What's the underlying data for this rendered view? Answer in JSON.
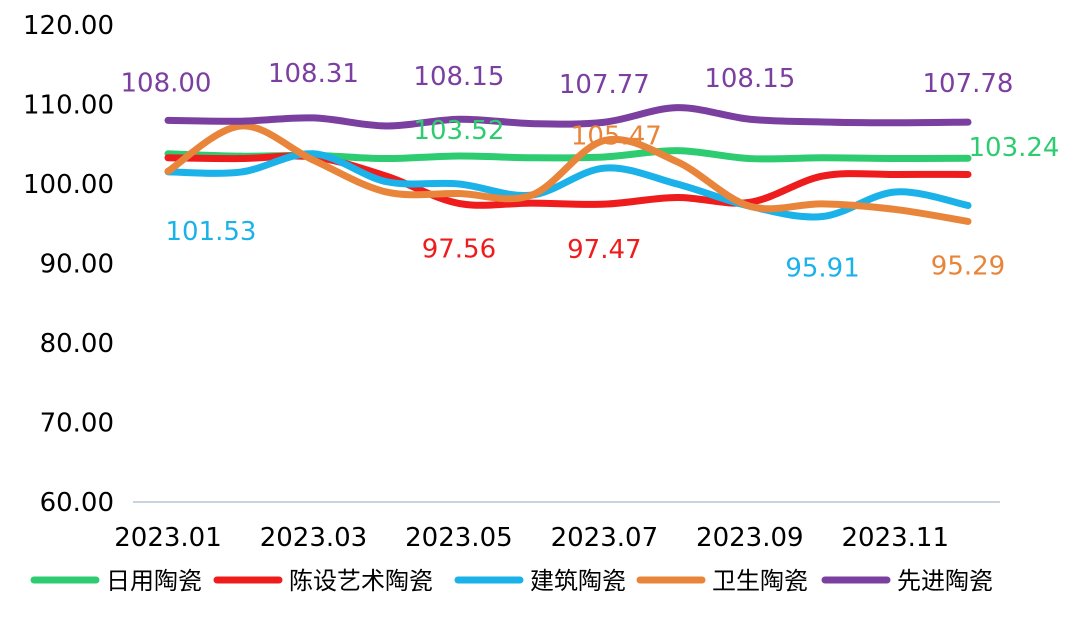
{
  "chart_data": {
    "type": "line",
    "title": "",
    "xlabel": "",
    "ylabel": "",
    "ylim": [
      60,
      120
    ],
    "yticks": [
      "60.00",
      "70.00",
      "80.00",
      "90.00",
      "100.00",
      "110.00",
      "120.00"
    ],
    "x": [
      "2023.01",
      "2023.02",
      "2023.03",
      "2023.04",
      "2023.05",
      "2023.06",
      "2023.07",
      "2023.08",
      "2023.09",
      "2023.10",
      "2023.11",
      "2023.12"
    ],
    "xtick_labels": [
      "2023.01",
      "2023.03",
      "2023.05",
      "2023.07",
      "2023.09",
      "2023.11"
    ],
    "grid": false,
    "legend_position": "bottom",
    "smooth": true,
    "series": [
      {
        "name": "日用陶瓷",
        "color": "#2ecc71",
        "values": [
          103.8,
          103.5,
          103.6,
          103.2,
          103.52,
          103.3,
          103.4,
          104.2,
          103.2,
          103.3,
          103.2,
          103.24
        ],
        "labels": [
          {
            "index": 4,
            "text": "103.52"
          },
          {
            "index": 11,
            "text": "103.24"
          }
        ]
      },
      {
        "name": "陈设艺术陶瓷",
        "color": "#ee1c1c",
        "values": [
          103.3,
          103.2,
          103.4,
          101.0,
          97.56,
          97.6,
          97.47,
          98.3,
          97.7,
          101.0,
          101.2,
          101.2
        ],
        "labels": [
          {
            "index": 4,
            "text": "97.56"
          },
          {
            "index": 6,
            "text": "97.47"
          }
        ]
      },
      {
        "name": "建筑陶瓷",
        "color": "#1ab2e8",
        "values": [
          101.53,
          101.5,
          103.8,
          100.3,
          100.0,
          98.6,
          102.0,
          100.0,
          97.2,
          95.91,
          99.0,
          97.3
        ],
        "labels": [
          {
            "index": 0,
            "text": "101.53"
          },
          {
            "index": 9,
            "text": "95.91"
          }
        ]
      },
      {
        "name": "卫生陶瓷",
        "color": "#e8853a",
        "values": [
          101.6,
          107.3,
          103.0,
          99.0,
          98.8,
          98.6,
          105.47,
          102.8,
          97.2,
          97.5,
          96.8,
          95.29
        ],
        "labels": [
          {
            "index": 6,
            "text": "105.47"
          },
          {
            "index": 11,
            "text": "95.29"
          }
        ]
      },
      {
        "name": "先进陶瓷",
        "color": "#7b3fa0",
        "values": [
          108.0,
          107.9,
          108.31,
          107.3,
          108.15,
          107.6,
          107.77,
          109.6,
          108.15,
          107.8,
          107.7,
          107.78
        ],
        "labels": [
          {
            "index": 0,
            "text": "108.00"
          },
          {
            "index": 2,
            "text": "108.31"
          },
          {
            "index": 4,
            "text": "108.15"
          },
          {
            "index": 6,
            "text": "107.77"
          },
          {
            "index": 8,
            "text": "108.15"
          },
          {
            "index": 11,
            "text": "107.78"
          }
        ]
      }
    ]
  }
}
